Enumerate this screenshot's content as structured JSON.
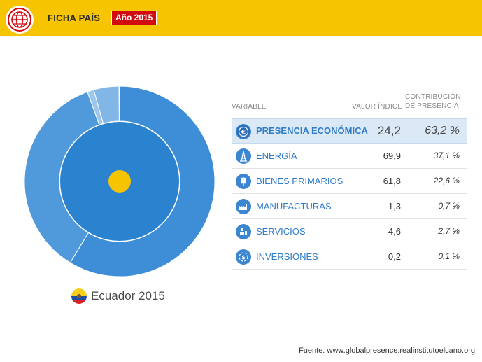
{
  "header": {
    "title": "FICHA PAÍS",
    "year_badge": "Año 2015",
    "colors": {
      "bar": "#f6c400",
      "badge": "#d10a12"
    }
  },
  "country": {
    "label": "Ecuador 2015",
    "flag_icon": "ecuador-flag-icon"
  },
  "table": {
    "col_variable": "VARIABLE",
    "col_value": "VALOR ÍNDICE",
    "col_contribution_line1": "CONTRIBUCIÓN",
    "col_contribution_line2": "DE PRESENCIA",
    "rows": [
      {
        "label": "PRESENCIA ECONÓMICA",
        "value": "24,2",
        "contribution": "63,2 %",
        "icon": "euro-icon"
      },
      {
        "label": "ENERGÍA",
        "value": "69,9",
        "contribution": "37,1 %",
        "icon": "oil-derrick-icon"
      },
      {
        "label": "BIENES PRIMARIOS",
        "value": "61,8",
        "contribution": "22,6 %",
        "icon": "wheat-icon"
      },
      {
        "label": "MANUFACTURAS",
        "value": "1,3",
        "contribution": "0,7 %",
        "icon": "factory-icon"
      },
      {
        "label": "SERVICIOS",
        "value": "4,6",
        "contribution": "2,7 %",
        "icon": "services-icon"
      },
      {
        "label": "INVERSIONES",
        "value": "0,2",
        "contribution": "0,1 %",
        "icon": "investment-icon"
      }
    ]
  },
  "chart_data": {
    "type": "pie",
    "inner_ring": {
      "values": [
        100
      ],
      "color": "#2b82cf"
    },
    "outer_ring": {
      "values": [
        58.7,
        35.8,
        1.1,
        4.3,
        0.1
      ],
      "colors": [
        "#3d8ed6",
        "#5099da",
        "#9ec7ed",
        "#82b6e6",
        "#2f7cc8"
      ]
    },
    "center_color": "#f6c400"
  },
  "source": "Fuente: www.globalpresence.realinstitutoelcano.org"
}
